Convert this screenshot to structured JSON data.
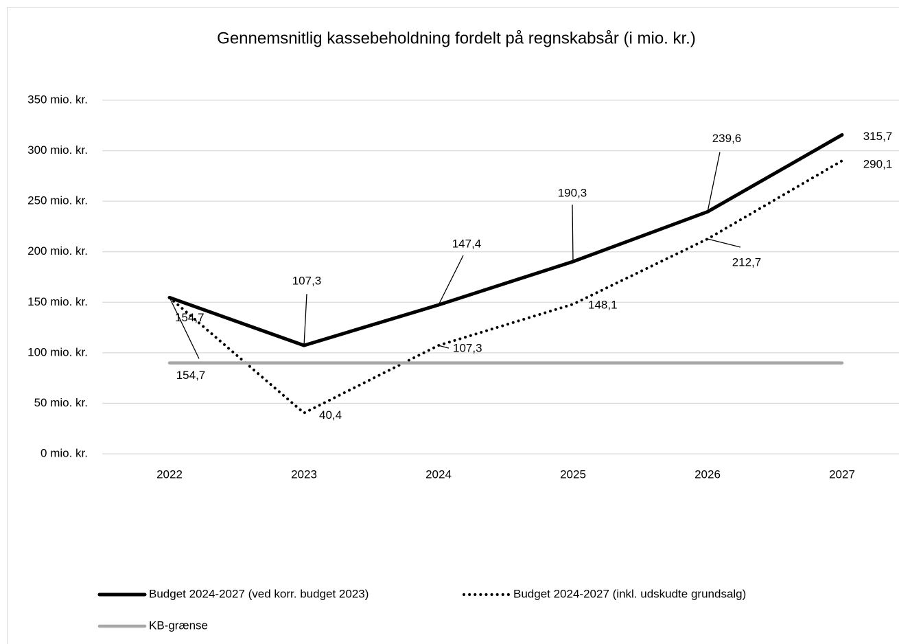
{
  "chart_data": {
    "type": "line",
    "title": "Gennemsnitlig kassebeholdning fordelt på regnskabsår (i mio. kr.)",
    "categories": [
      "2022",
      "2023",
      "2024",
      "2025",
      "2026",
      "2027"
    ],
    "series": [
      {
        "name": "Budget 2024-2027 (ved korr. budget 2023)",
        "color": "#000000",
        "style": "solid",
        "values": [
          154.7,
          107.3,
          147.4,
          190.3,
          239.6,
          315.7
        ],
        "value_labels": [
          "154,7",
          "107,3",
          "147,4",
          "190,3",
          "239,6",
          "315,7"
        ]
      },
      {
        "name": "Budget 2024-2027 (inkl. udskudte grundsalg)",
        "color": "#000000",
        "style": "dotted",
        "values": [
          154.7,
          40.4,
          107.3,
          148.1,
          212.7,
          290.1
        ],
        "value_labels": [
          "154,7",
          "40,4",
          "107,3",
          "148,1",
          "212,7",
          "290,1"
        ]
      },
      {
        "name": "KB-grænse",
        "color": "#a6a6a6",
        "style": "solid",
        "values": [
          90,
          90,
          90,
          90,
          90,
          90
        ]
      }
    ],
    "ylim": [
      0,
      350
    ],
    "yticks": [
      {
        "value": 0,
        "label": "0 mio. kr."
      },
      {
        "value": 50,
        "label": "50 mio. kr."
      },
      {
        "value": 100,
        "label": "100 mio. kr."
      },
      {
        "value": 150,
        "label": "150 mio. kr."
      },
      {
        "value": 200,
        "label": "200 mio. kr."
      },
      {
        "value": 250,
        "label": "250 mio. kr."
      },
      {
        "value": 300,
        "label": "300 mio. kr."
      },
      {
        "value": 350,
        "label": "350 mio. kr."
      }
    ],
    "grid": true,
    "legend": "bottom"
  }
}
